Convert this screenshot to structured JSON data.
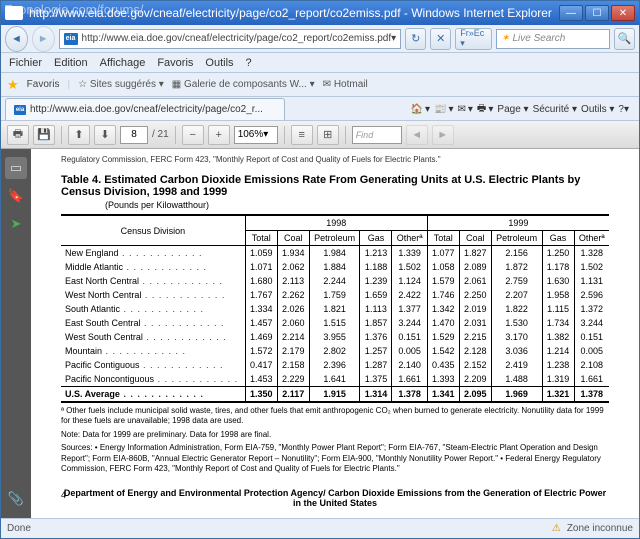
{
  "watermark": "Econologie.com/forums/",
  "titlebar": "http://www.eia.doe.gov/cneaf/electricity/page/co2_report/co2emiss.pdf - Windows Internet Explorer",
  "address": "http://www.eia.doe.gov/cneaf/electricity/page/co2_report/co2emiss.pdf",
  "search_placeholder": "Live Search",
  "menu": {
    "file": "Fichier",
    "edit": "Edition",
    "view": "Affichage",
    "favorites": "Favoris",
    "tools": "Outils",
    "help": "?"
  },
  "favbar": {
    "label": "Favoris",
    "l1": "Sites suggérés ▾",
    "l2": "Galerie de composants W... ▾",
    "l3": "Hotmail"
  },
  "encoding": "Fr»Ec ▾",
  "tab_title": "http://www.eia.doe.gov/cneaf/electricity/page/co2_r...",
  "tabtools": {
    "home": "▾",
    "rss": "▾",
    "mail": "▾",
    "print": "▾",
    "page": "Page ▾",
    "sec": "Sécurité ▾",
    "tools": "Outils ▾",
    "help": "?▾"
  },
  "pdf": {
    "page": "8",
    "pages": "/ 21",
    "zoom": "106%",
    "find": "Find"
  },
  "doc": {
    "trunc_top": "Regulatory Commission, FERC Form 423, \"Monthly Report of Cost and Quality of Fuels for Electric Plants.\"",
    "title": "Table 4.  Estimated Carbon Dioxide Emissions Rate From Generating Units at U.S. Electric Plants by Census Division, 1998 and 1999",
    "subtitle": "(Pounds per Kilowatthour)",
    "hdr_division": "Census Division",
    "years": [
      "1998",
      "1999"
    ],
    "cols": [
      "Total",
      "Coal",
      "Petroleum",
      "Gas",
      "Otherª"
    ],
    "rows": [
      {
        "n": "New England",
        "v": [
          "1.059",
          "1.934",
          "1.984",
          "1.213",
          "1.339",
          "1.077",
          "1.827",
          "2.156",
          "1.250",
          "1.328"
        ]
      },
      {
        "n": "Middle Atlantic",
        "v": [
          "1.071",
          "2.062",
          "1.884",
          "1.188",
          "1.502",
          "1.058",
          "2.089",
          "1.872",
          "1.178",
          "1.502"
        ]
      },
      {
        "n": "East North Central",
        "v": [
          "1.680",
          "2.113",
          "2.244",
          "1.239",
          "1.124",
          "1.579",
          "2.061",
          "2.759",
          "1.630",
          "1.131"
        ]
      },
      {
        "n": "West North Central",
        "v": [
          "1.767",
          "2.262",
          "1.759",
          "1.659",
          "2.422",
          "1.746",
          "2.250",
          "2.207",
          "1.958",
          "2.596"
        ]
      },
      {
        "n": "South Atlantic",
        "v": [
          "1.334",
          "2.026",
          "1.821",
          "1.113",
          "1.377",
          "1.342",
          "2.019",
          "1.822",
          "1.115",
          "1.372"
        ]
      },
      {
        "n": "East South Central",
        "v": [
          "1.457",
          "2.060",
          "1.515",
          "1.857",
          "3.244",
          "1.470",
          "2.031",
          "1.530",
          "1.734",
          "3.244"
        ]
      },
      {
        "n": "West South Central",
        "v": [
          "1.469",
          "2.214",
          "3.955",
          "1.376",
          "0.151",
          "1.529",
          "2.215",
          "3.170",
          "1.382",
          "0.151"
        ]
      },
      {
        "n": "Mountain",
        "v": [
          "1.572",
          "2.179",
          "2.802",
          "1.257",
          "0.005",
          "1.542",
          "2.128",
          "3.036",
          "1.214",
          "0.005"
        ]
      },
      {
        "n": "Pacific Contiguous",
        "v": [
          "0.417",
          "2.158",
          "2.396",
          "1.287",
          "2.140",
          "0.435",
          "2.152",
          "2.419",
          "1.238",
          "2.108"
        ]
      },
      {
        "n": "Pacific Noncontiguous",
        "v": [
          "1.453",
          "2.229",
          "1.641",
          "1.375",
          "1.661",
          "1.393",
          "2.209",
          "1.488",
          "1.319",
          "1.661"
        ]
      }
    ],
    "avg": {
      "n": "U.S. Average",
      "v": [
        "1.350",
        "2.117",
        "1.915",
        "1.314",
        "1.378",
        "1.341",
        "2.095",
        "1.969",
        "1.321",
        "1.378"
      ]
    },
    "footnote_a": "ª Other fuels include municipal solid waste, tires, and other fuels that emit anthropogenic CO₂ when burned to generate electricity. Nonutility data for 1999 for these fuels are unavailable; 1998 data are used.",
    "footnote_note": "Note: Data for 1999 are preliminary. Data for 1998 are final.",
    "footnote_src": "Sources: • Energy Information Administration, Form EIA-759, \"Monthly Power Plant Report\"; Form EIA-767, \"Steam-Electric Plant Operation and Design Report\"; Form EIA-860B, \"Annual Electric Generator Report – Nonutility\"; Form EIA-900, \"Monthly Nonutility Power Report.\" • Federal Energy Regulatory Commission, FERC Form 423, \"Monthly Report of Cost and Quality of Fuels for Electric Plants.\"",
    "dept": "Department of Energy and Environmental Protection Agency/ Carbon Dioxide Emissions from the Generation of Electric Power in the United States",
    "pageno": "4"
  },
  "status": {
    "done": "Done",
    "zone": "Zone inconnue"
  }
}
